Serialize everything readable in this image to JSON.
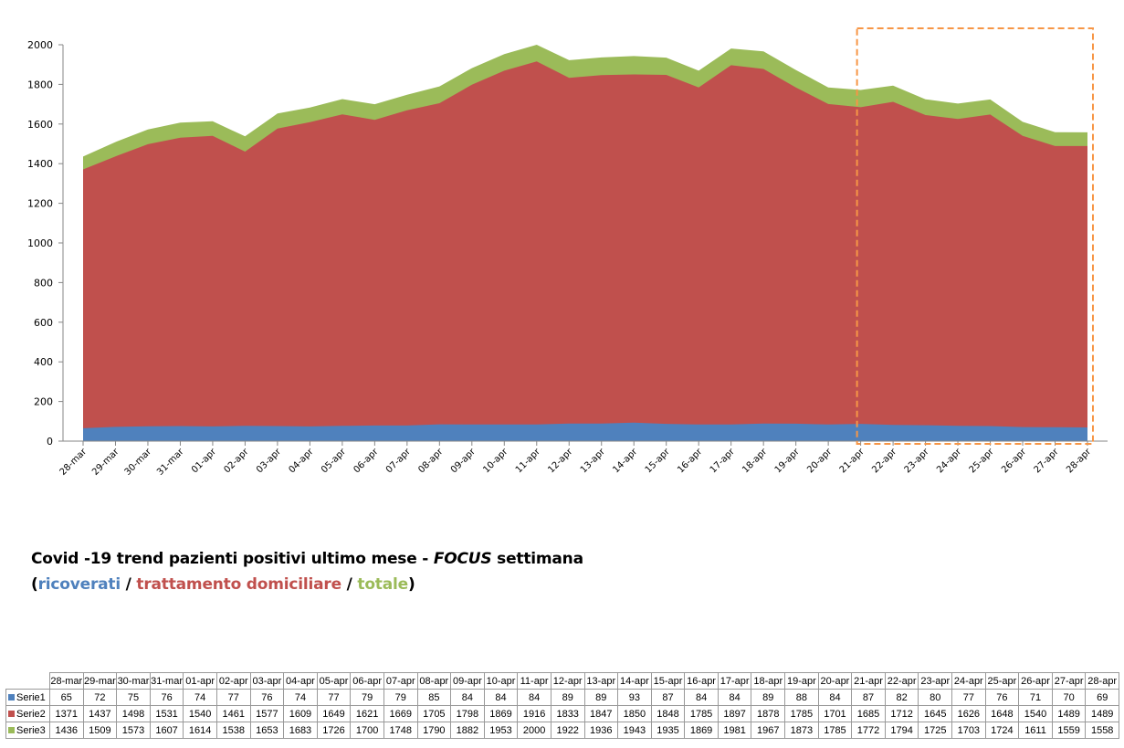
{
  "chart_data": {
    "type": "area",
    "stacked": false,
    "title": "",
    "xlabel": "",
    "ylabel": "",
    "ylim": [
      0,
      2000
    ],
    "yticks": [
      0,
      200,
      400,
      600,
      800,
      1000,
      1200,
      1400,
      1600,
      1800,
      2000
    ],
    "gridlines": false,
    "categories": [
      "28-mar",
      "29-mar",
      "30-mar",
      "31-mar",
      "01-apr",
      "02-apr",
      "03-apr",
      "04-apr",
      "05-apr",
      "06-apr",
      "07-apr",
      "08-apr",
      "09-apr",
      "10-apr",
      "11-apr",
      "12-apr",
      "13-apr",
      "14-apr",
      "15-apr",
      "16-apr",
      "17-apr",
      "18-apr",
      "19-apr",
      "20-apr",
      "21-apr",
      "22-apr",
      "23-apr",
      "24-apr",
      "25-apr",
      "26-apr",
      "27-apr",
      "28-apr"
    ],
    "series": [
      {
        "name": "Serie1",
        "color": "#4f81bd",
        "values": [
          65,
          72,
          75,
          76,
          74,
          77,
          76,
          74,
          77,
          79,
          79,
          85,
          84,
          84,
          84,
          89,
          89,
          93,
          87,
          84,
          84,
          89,
          88,
          84,
          87,
          82,
          80,
          77,
          76,
          71,
          70,
          69
        ]
      },
      {
        "name": "Serie2",
        "color": "#c0504d",
        "values": [
          1371,
          1437,
          1498,
          1531,
          1540,
          1461,
          1577,
          1609,
          1649,
          1621,
          1669,
          1705,
          1798,
          1869,
          1916,
          1833,
          1847,
          1850,
          1848,
          1785,
          1897,
          1878,
          1785,
          1701,
          1685,
          1712,
          1645,
          1626,
          1648,
          1540,
          1489,
          1489
        ]
      },
      {
        "name": "Serie3",
        "color": "#9bbb59",
        "values": [
          1436,
          1509,
          1573,
          1607,
          1614,
          1538,
          1653,
          1683,
          1726,
          1700,
          1748,
          1790,
          1882,
          1953,
          2000,
          1922,
          1936,
          1943,
          1935,
          1869,
          1981,
          1967,
          1873,
          1785,
          1772,
          1794,
          1725,
          1703,
          1724,
          1611,
          1559,
          1558
        ]
      }
    ],
    "highlight": {
      "from": "21-apr",
      "to": "28-apr",
      "style": "dashed",
      "color": "#f79646"
    }
  },
  "caption": {
    "line1_part1": "Covid -19 trend pazienti positivi ultimo mese - ",
    "line1_focus": "FOCUS",
    "line1_part2": " settimana",
    "open_paren": "(",
    "ricoverati": "ricoverati",
    "sep1": " / ",
    "trattamento": "trattamento domiciliare",
    "sep2": " / ",
    "totale": "totale",
    "close_paren": ")"
  }
}
